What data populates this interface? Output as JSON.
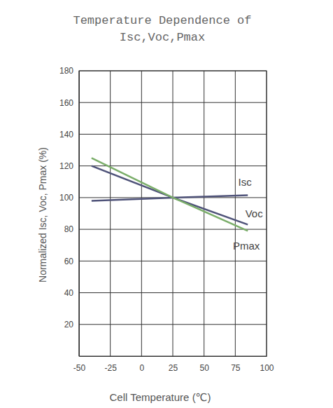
{
  "chart_data": {
    "type": "line",
    "title": "Temperature Dependence of",
    "subtitle": "Isc,Voc,Pmax",
    "x_label": "Cell Temperature (℃)",
    "y_label": "Normalized Isc, Voc, Pmax (%)",
    "x": [
      -40,
      25,
      85
    ],
    "series": [
      {
        "name": "Isc",
        "color": "#4f5379",
        "values": [
          98,
          100,
          101.5
        ]
      },
      {
        "name": "Voc",
        "color": "#4f5379",
        "values": [
          120,
          100,
          83
        ]
      },
      {
        "name": "Pmax",
        "color": "#7bae6a",
        "values": [
          125,
          100,
          79
        ]
      }
    ],
    "xlim": [
      -50,
      100
    ],
    "xticks": [
      -50,
      -25,
      0,
      25,
      50,
      75,
      100
    ],
    "ylim": [
      0,
      180
    ],
    "yticks": [
      20,
      40,
      60,
      80,
      100,
      120,
      140,
      160,
      180
    ],
    "grid": true
  }
}
